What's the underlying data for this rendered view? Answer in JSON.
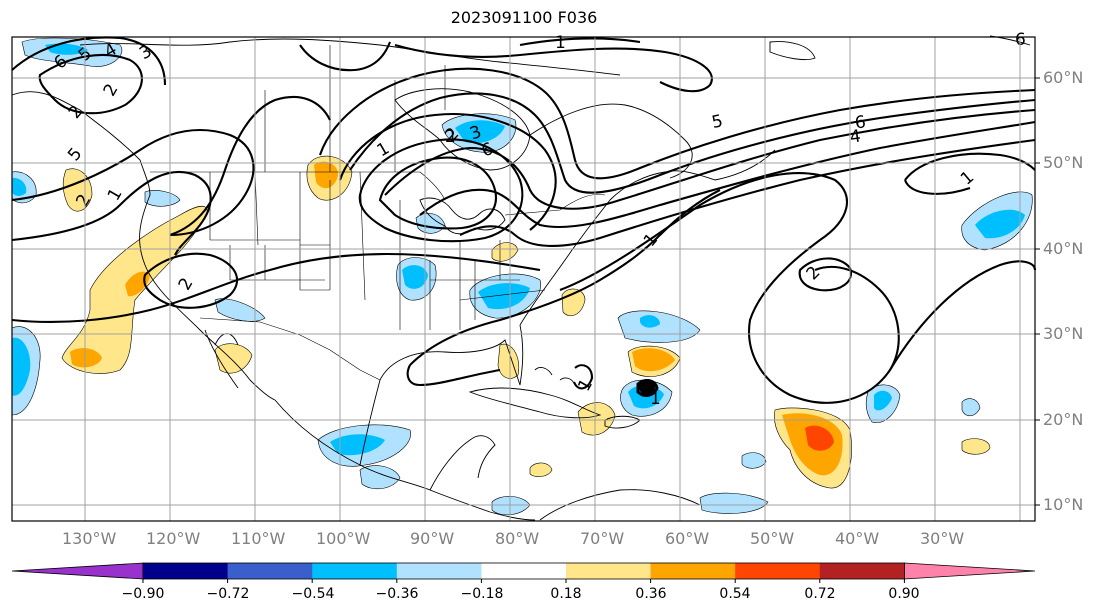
{
  "title": "2023091100 F036",
  "lon_labels": [
    "130°W",
    "120°W",
    "110°W",
    "100°W",
    "90°W",
    "80°W",
    "70°W",
    "60°W",
    "50°W",
    "40°W",
    "30°W"
  ],
  "lat_labels": [
    "60°N",
    "50°N",
    "40°N",
    "30°N",
    "20°N",
    "10°N"
  ],
  "contour_labels": [
    "6",
    "5",
    "4",
    "3",
    "2",
    "2",
    "1",
    "2",
    "5",
    "2",
    "2",
    "1",
    "2",
    "3",
    "6",
    "1",
    "5",
    "6",
    "4",
    "1",
    "1",
    "2",
    "1",
    "1",
    "6"
  ],
  "colorbar": {
    "tick_labels": [
      "−0.90",
      "−0.72",
      "−0.54",
      "−0.36",
      "−0.18",
      "0.18",
      "0.36",
      "0.54",
      "0.72",
      "0.90"
    ],
    "colors": [
      "#9932cc",
      "#00008b",
      "#3a5fcd",
      "#00bfff",
      "#b0e2ff",
      "#ffffff",
      "#ffe68a",
      "#ffa500",
      "#ff4500",
      "#b22222",
      "#ff82ab"
    ]
  }
}
